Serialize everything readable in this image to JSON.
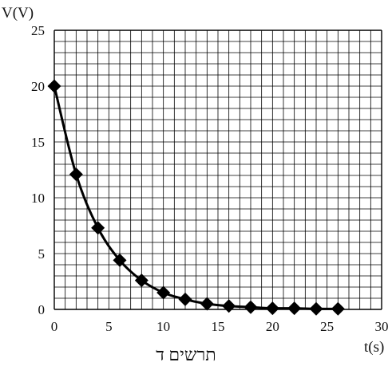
{
  "chart_data": {
    "type": "line",
    "caption": "תרשים ד",
    "xlabel": "t(s)",
    "ylabel": "V(V)",
    "xlim": [
      0,
      30
    ],
    "ylim": [
      0,
      25
    ],
    "x_ticks": [
      0,
      5,
      10,
      15,
      20,
      25,
      30
    ],
    "y_ticks": [
      0,
      5,
      10,
      15,
      20,
      25
    ],
    "grid": true,
    "grid_step_x": 1,
    "grid_step_y": 1,
    "marker": "diamond",
    "line_color": "#000000",
    "series": [
      {
        "x": [
          0,
          2,
          4,
          6,
          8,
          10,
          12,
          14,
          16,
          18,
          20,
          22,
          24,
          26
        ],
        "values": [
          20,
          12.1,
          7.3,
          4.4,
          2.6,
          1.5,
          0.9,
          0.5,
          0.3,
          0.2,
          0.1,
          0.1,
          0.05,
          0.05
        ]
      }
    ]
  }
}
